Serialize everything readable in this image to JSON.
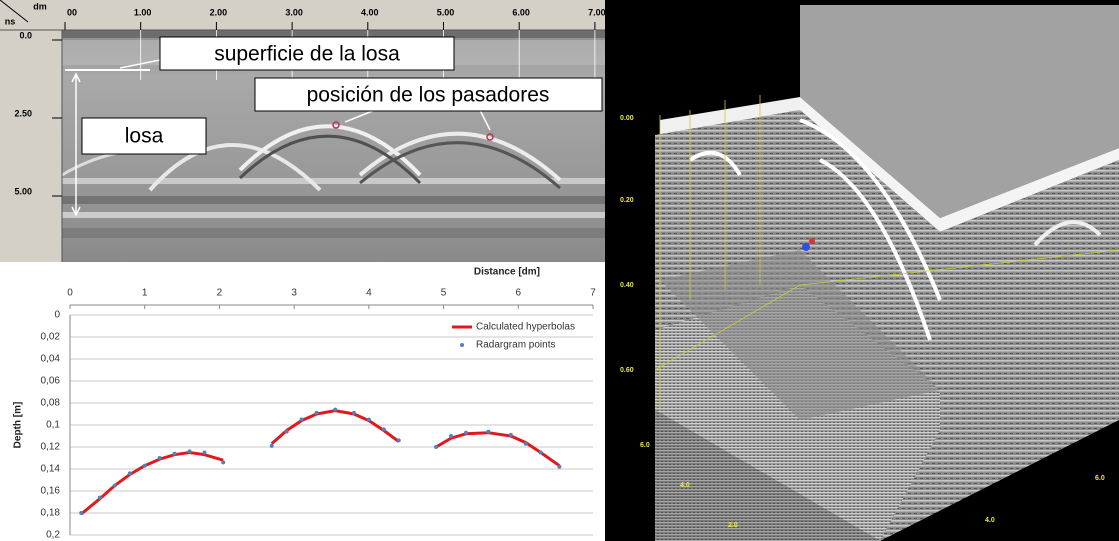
{
  "radargram": {
    "corner_top": "dm",
    "corner_bottom": "ns",
    "top_ticks": [
      "00",
      "1.00",
      "2.00",
      "3.00",
      "4.00",
      "5.00",
      "6.00",
      "7.00"
    ],
    "left_ticks": [
      "0.0",
      "2.50",
      "5.00"
    ],
    "annotations": [
      "superficie de la losa",
      "posición de los pasadores",
      "losa"
    ]
  },
  "chart_data": {
    "type": "line",
    "x_label": "Distance [dm]",
    "y_label": "Depth [m]",
    "x": [
      0.15,
      0.4,
      0.6,
      0.8,
      1.0,
      1.2,
      1.4,
      1.6,
      1.8,
      2.05,
      null,
      2.7,
      2.9,
      3.1,
      3.3,
      3.55,
      3.8,
      4.0,
      4.2,
      4.4,
      null,
      4.9,
      5.1,
      5.3,
      5.6,
      5.9,
      6.1,
      6.3,
      6.55
    ],
    "series": [
      {
        "name": "Calculated hyperbolas",
        "color": "#e0191e",
        "style": "line",
        "values": [
          0.181,
          0.167,
          0.155,
          0.145,
          0.137,
          0.131,
          0.127,
          0.125,
          0.127,
          0.132,
          null,
          0.117,
          0.105,
          0.096,
          0.09,
          0.087,
          0.09,
          0.096,
          0.105,
          0.115,
          null,
          0.12,
          0.112,
          0.108,
          0.107,
          0.11,
          0.116,
          0.125,
          0.137
        ]
      },
      {
        "name": "Radargram points",
        "color": "#4f81bd",
        "style": "points",
        "values": [
          0.18,
          0.166,
          0.155,
          0.144,
          0.137,
          0.13,
          0.126,
          0.124,
          0.125,
          0.134,
          null,
          0.119,
          0.106,
          0.095,
          0.089,
          0.086,
          0.089,
          0.095,
          0.104,
          0.114,
          null,
          0.12,
          0.11,
          0.107,
          0.106,
          0.109,
          0.117,
          0.125,
          0.138
        ]
      }
    ],
    "xlim": [
      0,
      7
    ],
    "xticks": [
      0,
      1,
      2,
      3,
      4,
      5,
      6,
      7
    ],
    "x_axis_position": "top",
    "ylim": [
      0,
      0.2
    ],
    "y_inverted": true,
    "yticks": [
      0,
      {
        "value": 0.02,
        "label": "0,02"
      },
      {
        "value": 0.04,
        "label": "0,04"
      },
      {
        "value": 0.06,
        "label": "0,06"
      },
      {
        "value": 0.08,
        "label": "0,08"
      },
      {
        "value": 0.1,
        "label": "0,1"
      },
      {
        "value": 0.12,
        "label": "0,12"
      },
      {
        "value": 0.14,
        "label": "0,14"
      },
      {
        "value": 0.16,
        "label": "0,16"
      },
      {
        "value": 0.18,
        "label": "0,18"
      },
      {
        "value": 0.2,
        "label": "0,2"
      }
    ],
    "grid": true,
    "legend": "upper right"
  },
  "volume_3d": {
    "depth_ticks": [
      "0.00",
      "0.20",
      "0.40",
      "0.60"
    ],
    "axis_ticks": [
      "6.0",
      "4.0",
      "2.0",
      "4.0",
      "6.0"
    ]
  }
}
